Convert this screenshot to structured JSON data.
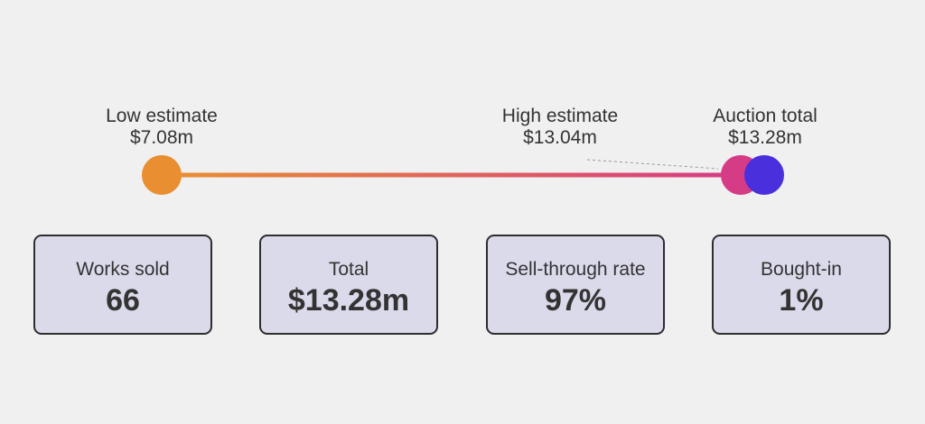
{
  "estimates": {
    "low": {
      "label": "Low estimate",
      "value": "$7.08m",
      "color": "#e98f31"
    },
    "high": {
      "label": "High estimate",
      "value": "$13.04m",
      "color": "#d63b85"
    },
    "total": {
      "label": "Auction total",
      "value": "$13.28m",
      "color": "#4a2fdc"
    }
  },
  "stats": [
    {
      "label": "Works sold",
      "value": "66"
    },
    {
      "label": "Total",
      "value": "$13.28m"
    },
    {
      "label": "Sell-through rate",
      "value": "97%"
    },
    {
      "label": "Bought-in",
      "value": "1%"
    }
  ]
}
